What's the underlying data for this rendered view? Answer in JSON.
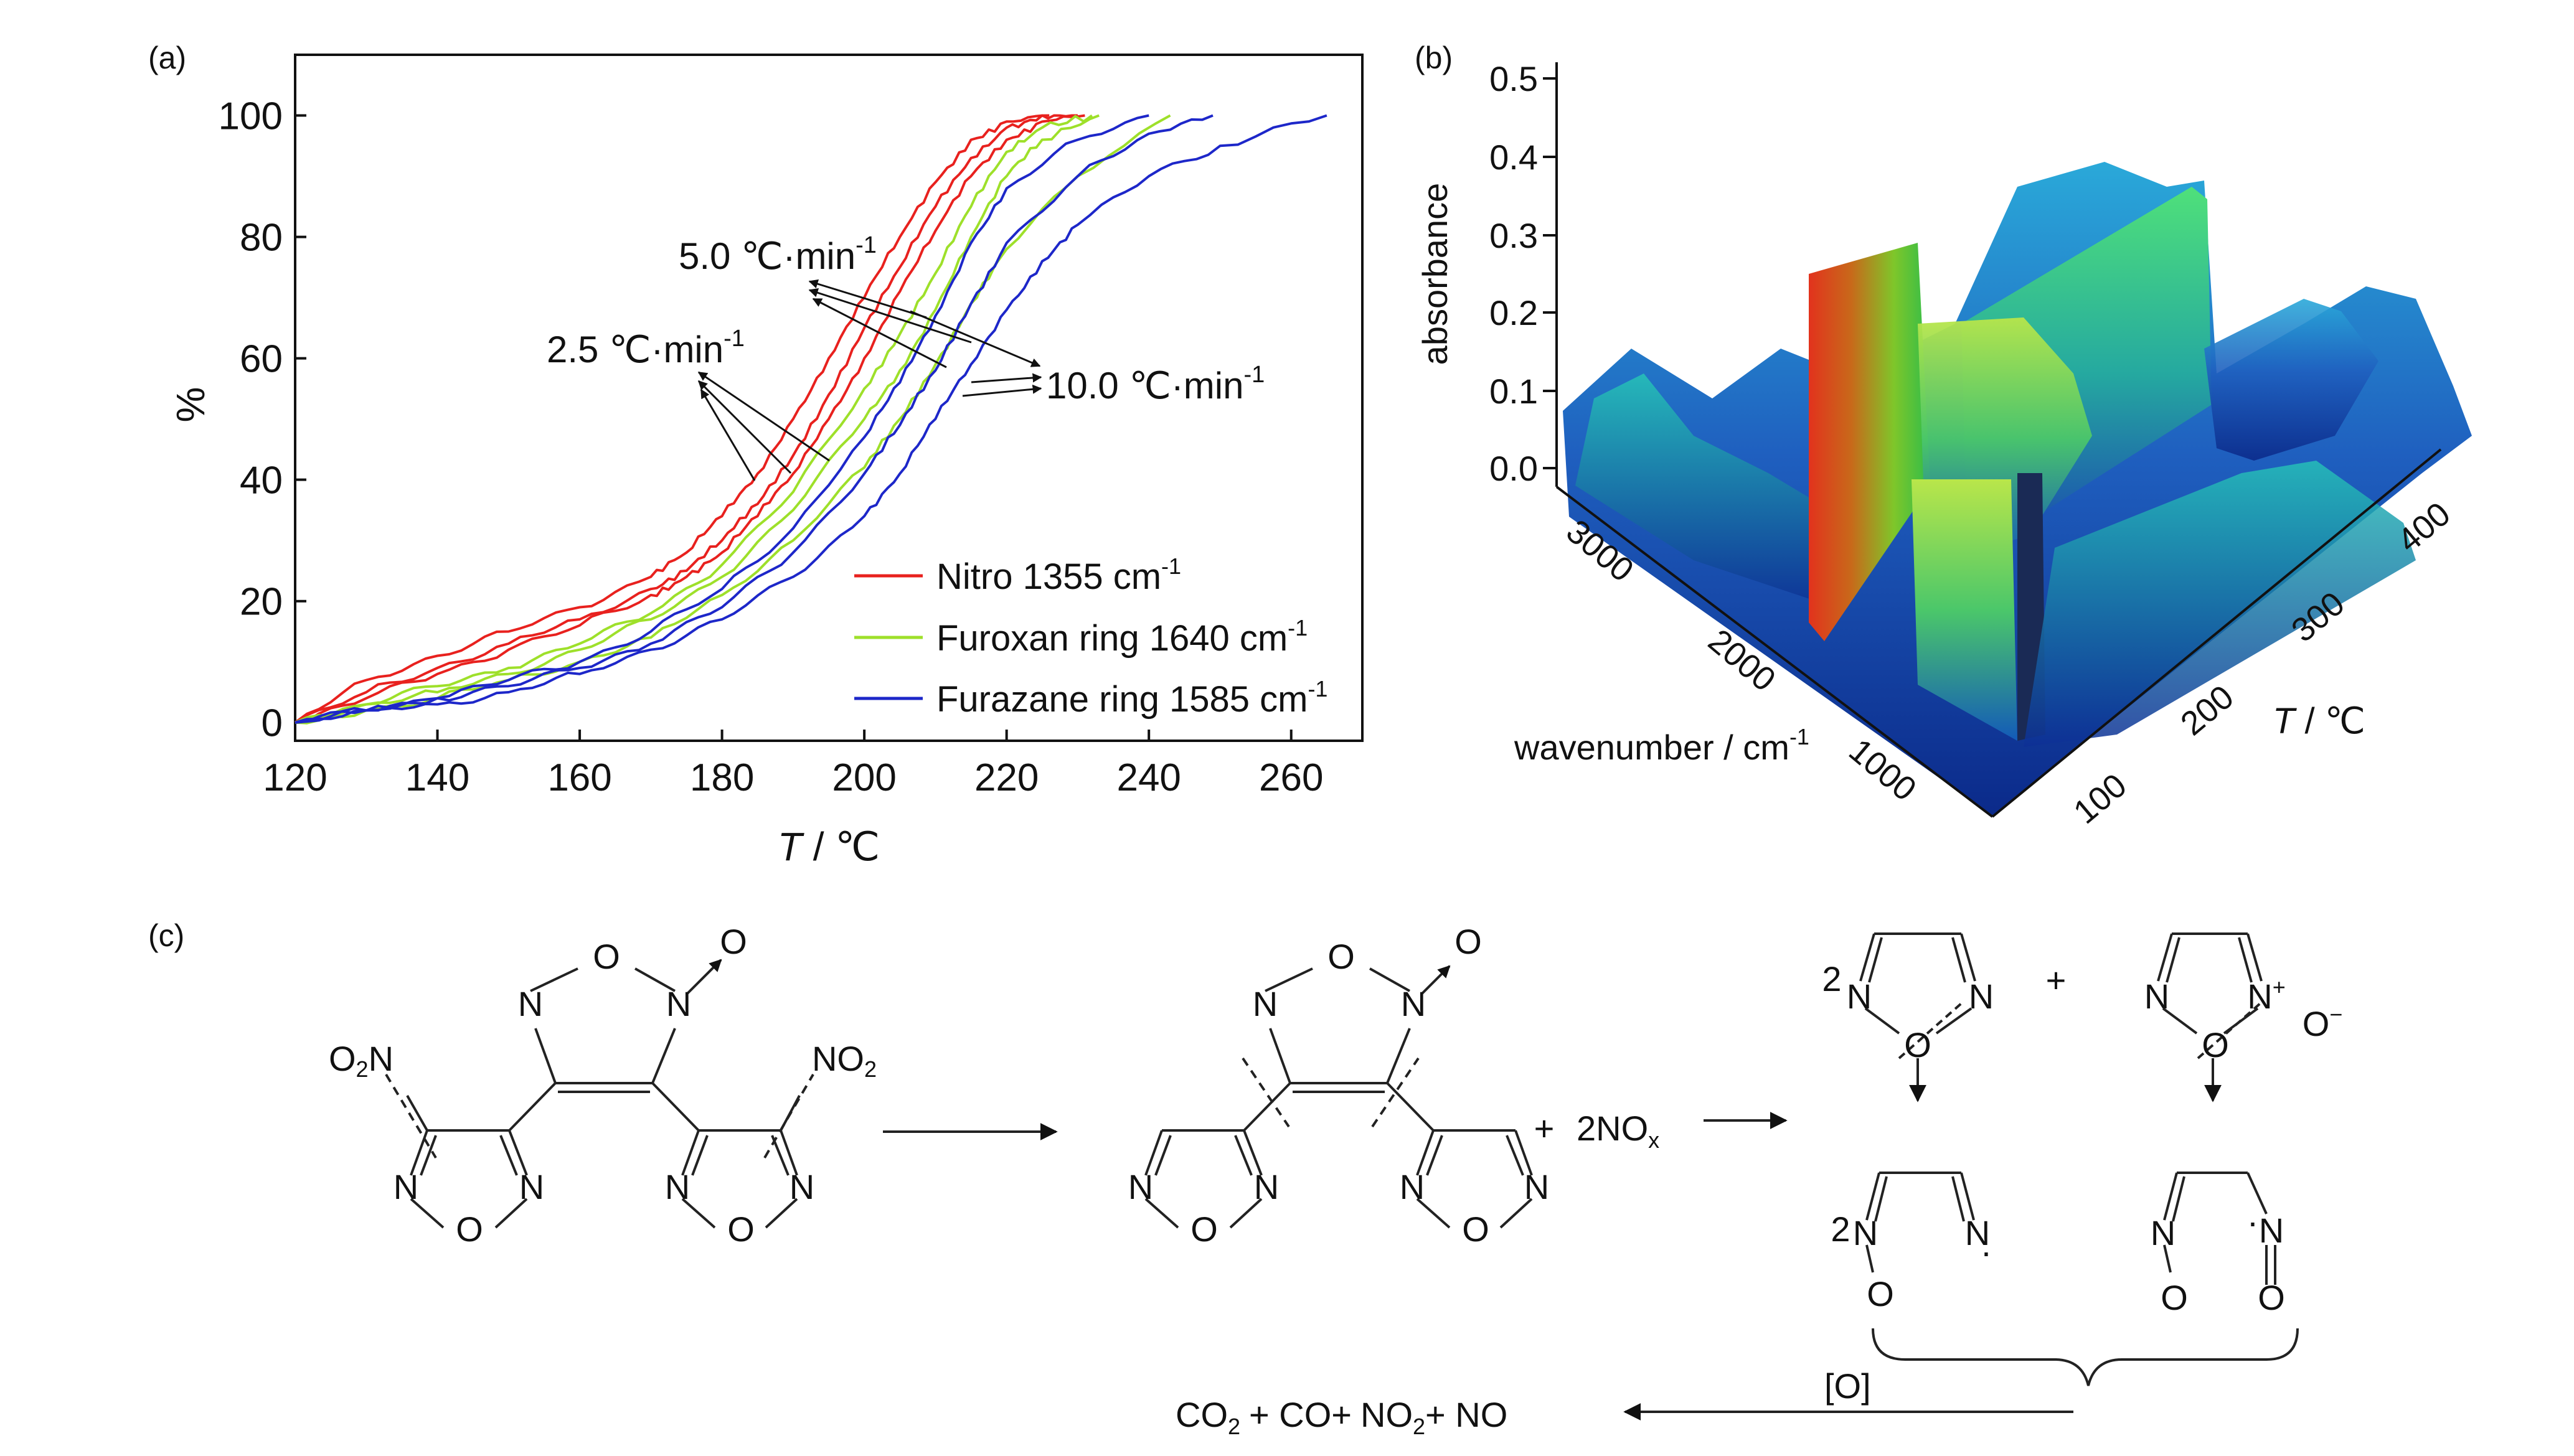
{
  "panels": {
    "a": {
      "label": "(a)"
    },
    "b": {
      "label": "(b)"
    },
    "c": {
      "label": "(c)"
    }
  },
  "chart_data": [
    {
      "type": "line",
      "panel": "(a)",
      "xlabel_var": "T",
      "xlabel_unit": " / ℃",
      "ylabel": "%",
      "xlim": [
        120,
        270
      ],
      "ylim": [
        -3,
        110
      ],
      "xticks": [
        120,
        140,
        160,
        180,
        200,
        220,
        240,
        260
      ],
      "yticks": [
        0,
        20,
        40,
        60,
        80,
        100
      ],
      "grid": false,
      "legend_position": "bottom-right",
      "legend": [
        {
          "name_main": "Nitro 1355 cm",
          "sup": "-1",
          "color": "#e8211e"
        },
        {
          "name_main": "Furoxan ring 1640 cm",
          "sup": "-1",
          "color": "#9ee02a"
        },
        {
          "name_main": "Furazane ring 1585 cm",
          "sup": "-1",
          "color": "#1d27c9"
        }
      ],
      "annotations": [
        {
          "main": "2.5  ℃·min",
          "sup": "-1"
        },
        {
          "main": "5.0  ℃·min",
          "sup": "-1"
        },
        {
          "main": "10.0  ℃·min",
          "sup": "-1"
        }
      ],
      "series": [
        {
          "group": "nitro",
          "rate": "2.5",
          "color": "#e8211e",
          "x": [
            120,
            130,
            140,
            150,
            160,
            170,
            175,
            180,
            185,
            190,
            195,
            200,
            205,
            210,
            215,
            220,
            226
          ],
          "y": [
            0,
            7,
            11,
            15,
            19,
            24,
            28,
            34,
            41,
            50,
            60,
            70,
            80,
            89,
            96,
            99,
            100
          ]
        },
        {
          "group": "nitro",
          "rate": "5.0",
          "color": "#e8211e",
          "x": [
            120,
            130,
            140,
            150,
            160,
            170,
            175,
            180,
            185,
            190,
            195,
            200,
            205,
            210,
            215,
            220,
            225,
            230
          ],
          "y": [
            0,
            5,
            9,
            13,
            17,
            22,
            25,
            30,
            36,
            44,
            54,
            65,
            75,
            85,
            93,
            98,
            100,
            100
          ]
        },
        {
          "group": "nitro",
          "rate": "10.0",
          "color": "#e8211e",
          "x": [
            120,
            130,
            140,
            150,
            160,
            170,
            175,
            180,
            185,
            190,
            195,
            200,
            205,
            210,
            215,
            220,
            225,
            231
          ],
          "y": [
            0,
            4,
            8,
            12,
            16,
            21,
            24,
            28,
            34,
            41,
            50,
            60,
            71,
            81,
            90,
            96,
            99,
            100
          ]
        },
        {
          "group": "furoxan",
          "rate": "2.5",
          "color": "#9ee02a",
          "x": [
            120,
            130,
            140,
            150,
            160,
            170,
            180,
            190,
            200,
            205,
            210,
            215,
            220,
            225,
            232
          ],
          "y": [
            0,
            3,
            6,
            9,
            13,
            18,
            26,
            38,
            55,
            64,
            74,
            85,
            94,
            98,
            100
          ]
        },
        {
          "group": "furoxan",
          "rate": "5.0",
          "color": "#9ee02a",
          "x": [
            120,
            130,
            140,
            150,
            160,
            170,
            180,
            190,
            200,
            205,
            210,
            215,
            220,
            225,
            233
          ],
          "y": [
            0,
            3,
            5,
            8,
            12,
            17,
            24,
            35,
            50,
            58,
            68,
            80,
            90,
            96,
            100
          ]
        },
        {
          "group": "furoxan",
          "rate": "10.0",
          "color": "#9ee02a",
          "x": [
            120,
            130,
            140,
            150,
            160,
            170,
            180,
            190,
            200,
            205,
            210,
            215,
            220,
            230,
            243
          ],
          "y": [
            0,
            2,
            4,
            7,
            10,
            14,
            21,
            30,
            42,
            50,
            59,
            69,
            78,
            90,
            100
          ]
        },
        {
          "group": "furazane",
          "rate": "2.5",
          "color": "#1d27c9",
          "x": [
            120,
            130,
            140,
            150,
            160,
            170,
            180,
            190,
            200,
            205,
            210,
            215,
            220,
            230,
            240
          ],
          "y": [
            0,
            2,
            4,
            7,
            10,
            15,
            22,
            32,
            47,
            56,
            67,
            79,
            88,
            96,
            100
          ]
        },
        {
          "group": "furazane",
          "rate": "5.0",
          "color": "#1d27c9",
          "x": [
            120,
            130,
            140,
            150,
            160,
            170,
            180,
            190,
            200,
            205,
            210,
            215,
            220,
            230,
            240,
            249
          ],
          "y": [
            0,
            2,
            4,
            6,
            9,
            13,
            19,
            28,
            41,
            49,
            58,
            69,
            79,
            90,
            97,
            100
          ]
        },
        {
          "group": "furazane",
          "rate": "10.0",
          "color": "#1d27c9",
          "x": [
            120,
            130,
            140,
            150,
            160,
            170,
            180,
            190,
            200,
            205,
            210,
            215,
            220,
            225,
            230,
            240,
            250,
            265
          ],
          "y": [
            0,
            2,
            3,
            5,
            8,
            12,
            17,
            24,
            34,
            41,
            50,
            59,
            68,
            76,
            82,
            90,
            95,
            100
          ]
        }
      ]
    },
    {
      "type": "surface",
      "panel": "(b)",
      "zlabel": "absorbance",
      "zticks": [
        "0.0",
        "0.1",
        "0.2",
        "0.3",
        "0.4",
        "0.5"
      ],
      "x_axis_label_main": "wavenumber / cm",
      "x_axis_label_sup": "-1",
      "x_ticks": [
        "3000",
        "2000",
        "1000"
      ],
      "t_axis_label_var": "T",
      "t_axis_label_unit": " / ℃",
      "t_ticks": [
        "100",
        "200",
        "300",
        "400"
      ]
    }
  ],
  "scheme": {
    "o_top": "O",
    "n_left": "N",
    "n_right": "N",
    "arrow_o": "O",
    "no2": "NO",
    "sub2": "2",
    "o2n_o": "O",
    "o2n_n": "N",
    "ring_o": "O",
    "ring_n": "N",
    "plus": "+",
    "nox_main": "2NO",
    "nox_sub": "x",
    "coef2": "2",
    "n_plus": "N",
    "plus_sup": "+",
    "o_minus": "O",
    "minus_sup": "−",
    "oxid": "[O]",
    "co2_main": "CO",
    "co_term": "+ CO+",
    "no2_term_main": "NO",
    "no_term": "+ NO",
    "dot": "·"
  }
}
